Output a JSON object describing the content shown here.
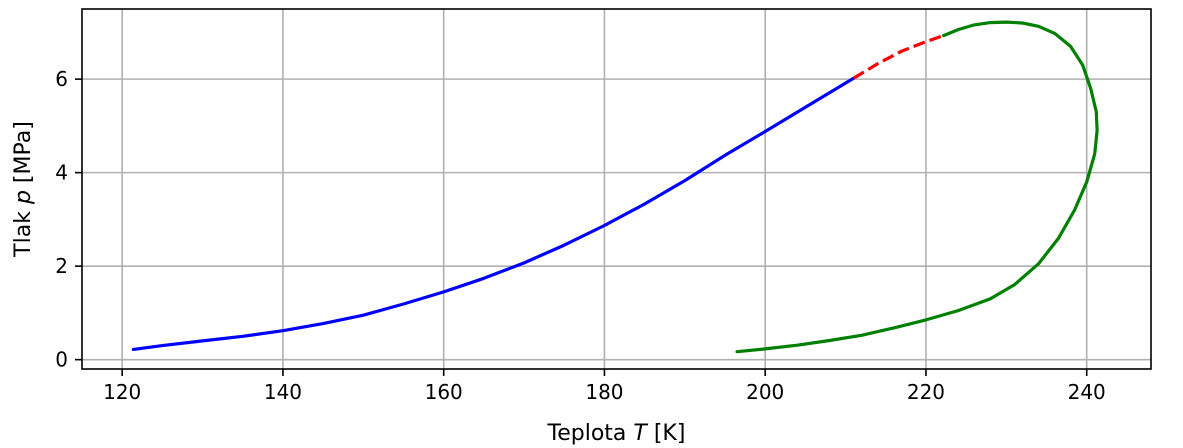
{
  "chart_data": {
    "type": "line",
    "title": "",
    "xlabel_prefix": "Teplota ",
    "xlabel_symbol": "T",
    "xlabel_suffix": " [K]",
    "ylabel_prefix": "Tlak ",
    "ylabel_symbol": "p",
    "ylabel_suffix": " [MPa]",
    "xlim": [
      115,
      248
    ],
    "ylim": [
      -0.2,
      7.5
    ],
    "xticks": [
      120,
      140,
      160,
      180,
      200,
      220,
      240
    ],
    "yticks": [
      0,
      2,
      4,
      6
    ],
    "grid": true,
    "series": [
      {
        "color": "#0000ff",
        "style": "solid",
        "x": [
          121.4,
          125,
          130,
          135,
          140,
          145,
          150,
          155,
          160,
          165,
          170,
          175,
          180,
          185,
          190,
          195,
          200,
          205,
          211
        ],
        "y": [
          0.22,
          0.3,
          0.4,
          0.5,
          0.62,
          0.77,
          0.95,
          1.19,
          1.45,
          1.74,
          2.07,
          2.45,
          2.87,
          3.33,
          3.83,
          4.37,
          4.88,
          5.4,
          6.02
        ]
      },
      {
        "color": "#ff0000",
        "style": "dashed",
        "x": [
          211,
          214,
          217,
          220,
          222.2
        ],
        "y": [
          6.02,
          6.33,
          6.6,
          6.8,
          6.93
        ]
      },
      {
        "color": "#008000",
        "style": "solid",
        "x": [
          222.2,
          224,
          226,
          228,
          230,
          232,
          234,
          236,
          238,
          239.5,
          240.5,
          241.2,
          241.3,
          241.0,
          240.0,
          238.5,
          236.5,
          234.0,
          231.0,
          228.0,
          224.0,
          220.0,
          216.0,
          212.0,
          208.0,
          204.0,
          200.0,
          196.5
        ],
        "y": [
          6.93,
          7.06,
          7.16,
          7.21,
          7.22,
          7.2,
          7.13,
          6.98,
          6.7,
          6.3,
          5.8,
          5.3,
          4.9,
          4.4,
          3.8,
          3.2,
          2.6,
          2.05,
          1.6,
          1.3,
          1.05,
          0.85,
          0.68,
          0.52,
          0.41,
          0.31,
          0.23,
          0.17
        ]
      }
    ]
  }
}
